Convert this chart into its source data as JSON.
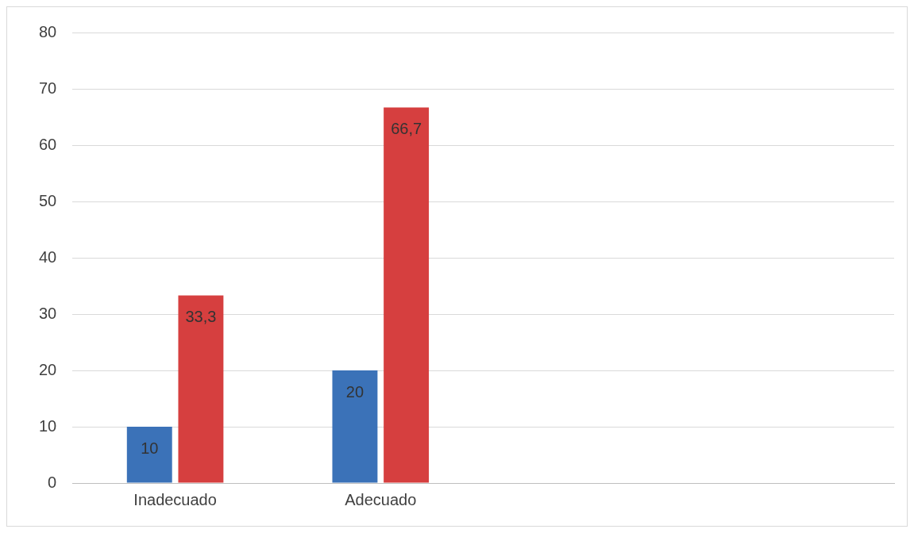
{
  "chart_data": {
    "type": "bar",
    "categories": [
      "Inadecuado",
      "Adecuado",
      null,
      null
    ],
    "series": [
      {
        "color": "#3b72b8",
        "values": [
          10,
          20,
          null,
          null
        ],
        "value_labels": [
          "10",
          "20",
          null,
          null
        ]
      },
      {
        "color": "#d63f3f",
        "values": [
          33.3,
          66.7,
          null,
          null
        ],
        "value_labels": [
          "33,3",
          "66,7",
          null,
          null
        ]
      }
    ],
    "ylim": [
      0,
      80
    ],
    "yticks": [
      0,
      10,
      20,
      30,
      40,
      50,
      60,
      70,
      80
    ],
    "grid": "y",
    "legend": false
  }
}
